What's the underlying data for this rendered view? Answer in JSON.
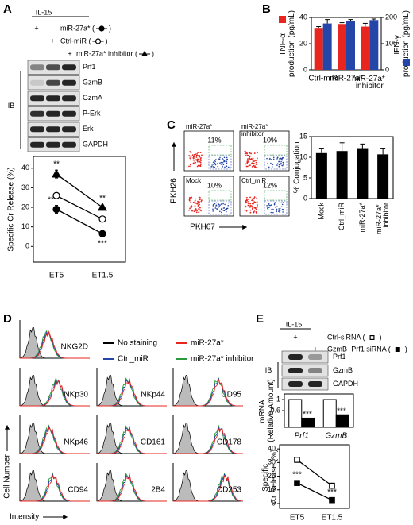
{
  "panel_letters": [
    "A",
    "B",
    "C",
    "D",
    "E"
  ],
  "panel_a": {
    "treatment": "IL-15",
    "lane_marks": [
      "+",
      "+",
      "+"
    ],
    "conditions": [
      {
        "label": "miR-27a* (",
        "close": ")"
      },
      {
        "label": "Ctrl-miR (",
        "close": ")"
      },
      {
        "label": "miR-27a* inhibitor (",
        "close": ")"
      }
    ],
    "blots": [
      "Prf1",
      "GzmB",
      "GzmA",
      "P-Erk",
      "Erk",
      "GAPDH"
    ],
    "ib": "IB"
  },
  "panel_c": {
    "plots": [
      {
        "name": "miR-27a*",
        "percent": "11%"
      },
      {
        "name": "miR-27a* inhibitor",
        "percent": "10%"
      },
      {
        "name": "Mock",
        "percent": "10%"
      },
      {
        "name": "Ctrl_miR",
        "percent": "12%"
      }
    ],
    "y_axis": "PKH26",
    "x_axis": "PKH67"
  },
  "panel_d": {
    "legend": [
      {
        "name": "No staining",
        "color": "#000000"
      },
      {
        "name": "miR-27a*",
        "color": "#e8251f"
      },
      {
        "name": "Ctrl_miR",
        "color": "#2446a8"
      },
      {
        "name": "miR-27a* inhibitor",
        "color": "#2a9a3a"
      }
    ],
    "markers": [
      "NKG2D",
      "NKp30",
      "NKp44",
      "CD95",
      "NKp46",
      "CD161",
      "CD178",
      "CD94",
      "2B4",
      "CD253"
    ],
    "y_axis": "Cell Number",
    "x_axis": "Intensity"
  },
  "panel_e": {
    "treatment": "IL-15",
    "lane_marks": [
      "+",
      "+"
    ],
    "conditions": [
      {
        "label": "Ctrl-siRNA (",
        "close": ")"
      },
      {
        "label": "GzmB+Prf1 siRNA (",
        "close": ")"
      }
    ],
    "blots": [
      "Prf1",
      "GzmB",
      "GAPDH"
    ],
    "ib": "IB"
  },
  "chart_data": [
    {
      "type": "line",
      "categories": [
        "ET5",
        "ET1.5"
      ],
      "ylabel": "Specific Cr Release (%)",
      "ylim": [
        -8,
        46
      ],
      "yticks": [
        0,
        10,
        20,
        30,
        40
      ],
      "series": [
        {
          "color": "#000000",
          "marker": "triangle",
          "filled": true,
          "values": [
            37,
            20
          ],
          "errors": [
            2,
            1
          ]
        },
        {
          "color": "#000000",
          "marker": "circle",
          "filled": false,
          "values": [
            26,
            14
          ],
          "errors": [
            0.8,
            0.8
          ]
        },
        {
          "color": "#000000",
          "marker": "circle",
          "filled": true,
          "values": [
            19,
            6.5
          ],
          "errors": [
            2,
            0.8
          ]
        }
      ],
      "annotations": [
        "**",
        "**",
        "**",
        "***"
      ]
    },
    {
      "type": "bar",
      "categories": [
        "Ctrl-miR",
        "miR-27a*",
        "miR-27a* inhibitor"
      ],
      "ylabel": "TNF-α production (pg/mL)",
      "y2label": "IFN-γ production (pg/mL)",
      "ylim": [
        0,
        40
      ],
      "yticks": [
        0,
        20,
        40
      ],
      "y2lim": [
        0,
        200
      ],
      "y2ticks": [
        0,
        100,
        200
      ],
      "series": [
        {
          "color": "#e8251f",
          "values": [
            32,
            35,
            33
          ],
          "errors": [
            1,
            1,
            2.5
          ]
        },
        {
          "color": "#2446a8",
          "axis": "y2",
          "values": [
            177,
            187,
            190
          ],
          "errors": [
            15,
            5,
            4
          ]
        }
      ]
    },
    {
      "type": "bar",
      "categories": [
        "Mock",
        "Ctrl_miR",
        "miR-27a*",
        "miR-27a* inhibitor"
      ],
      "ylabel": "% Conjugation",
      "ylim": [
        0,
        15
      ],
      "yticks": [
        0,
        5,
        10,
        15
      ],
      "series": [
        {
          "color": "#000000",
          "values": [
            11,
            11.5,
            12.2,
            10.7
          ],
          "errors": [
            1.2,
            2,
            1,
            1.5
          ]
        }
      ]
    },
    {
      "type": "bar",
      "categories": [
        "Prf1",
        "GzmB"
      ],
      "ylabel": "mRNA (Relative Amount)",
      "ylim": [
        0,
        1.2
      ],
      "yticks": [
        0.6,
        1
      ],
      "edgecolor": "#000000",
      "series": [
        {
          "color": "#ffffff",
          "values": [
            1,
            1
          ]
        },
        {
          "color": "#000000",
          "values": [
            0.33,
            0.45
          ]
        }
      ],
      "annotations": [
        "***",
        "***"
      ]
    },
    {
      "type": "line",
      "categories": [
        "ET5",
        "ET1.5"
      ],
      "ylabel": "Specific Cr Release (%)",
      "ylim": [
        -3.5,
        43
      ],
      "yticks": [
        0,
        10,
        20,
        30,
        40
      ],
      "series": [
        {
          "color": "#000000",
          "marker": "square",
          "filled": false,
          "values": [
            32,
            13
          ],
          "errors": [
            1.5,
            1
          ]
        },
        {
          "color": "#000000",
          "marker": "square",
          "filled": true,
          "values": [
            15,
            2.5
          ],
          "errors": [
            1.5,
            0.5
          ]
        }
      ],
      "annotations": [
        "***",
        "***"
      ]
    }
  ]
}
